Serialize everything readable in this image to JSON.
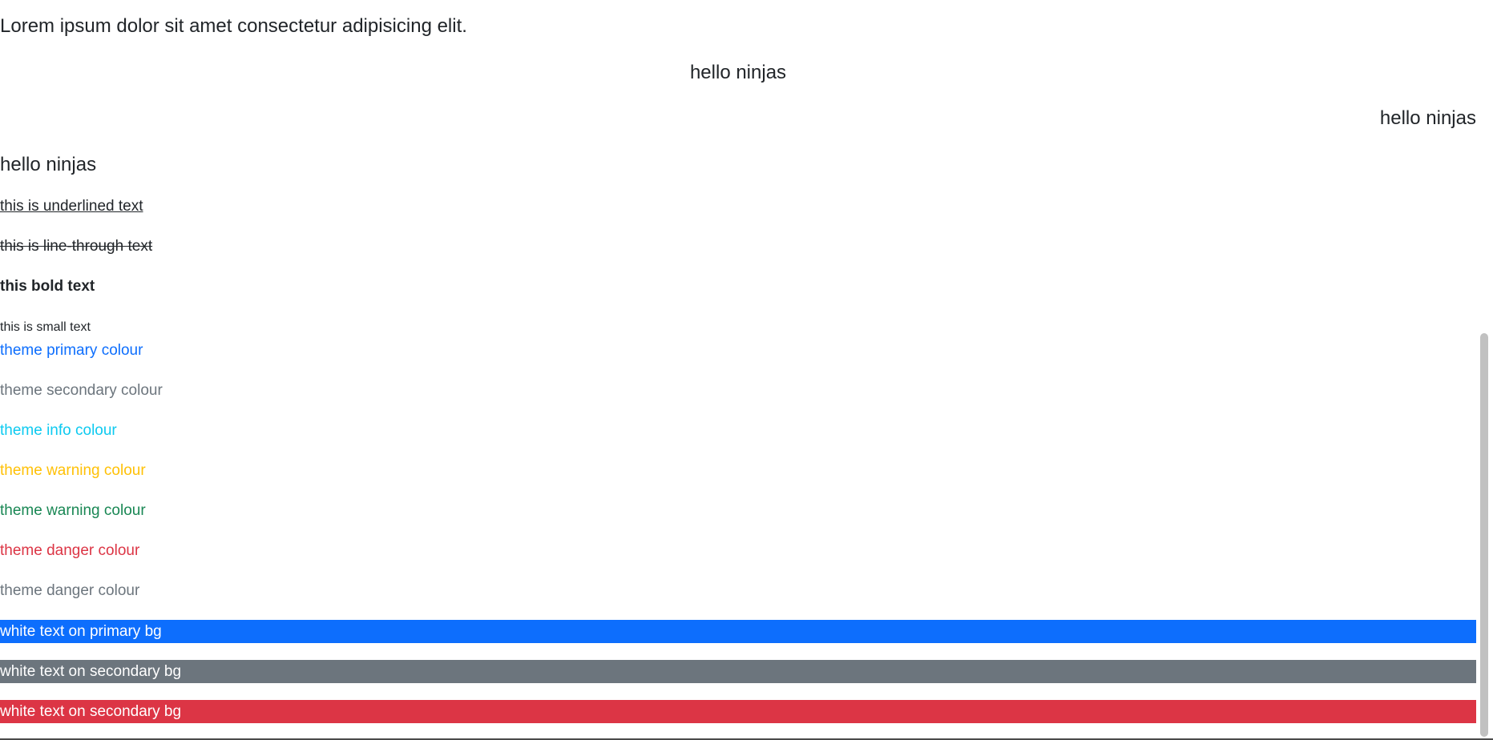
{
  "intro": "Lorem ipsum dolor sit amet consectetur adipisicing elit.",
  "headings": {
    "center": "hello ninjas",
    "right": "hello ninjas",
    "left": "hello ninjas"
  },
  "decorations": {
    "underline": "this is underlined text",
    "line_through": "this is line-through text",
    "bold": "this bold text",
    "small": "this is small text"
  },
  "text_colors": [
    {
      "label": "theme primary colour",
      "color": "#0d6efd"
    },
    {
      "label": "theme secondary colour",
      "color": "#6c757d"
    },
    {
      "label": "theme info colour",
      "color": "#0dcaf0"
    },
    {
      "label": "theme warning colour",
      "color": "#ffc107"
    },
    {
      "label": "theme warning colour",
      "color": "#198754"
    },
    {
      "label": "theme danger colour",
      "color": "#dc3545"
    },
    {
      "label": "theme danger colour",
      "color": "#6c757d"
    }
  ],
  "backgrounds": [
    {
      "label": "white text on primary bg",
      "color": "#0d6efd"
    },
    {
      "label": "white text on secondary bg",
      "color": "#6c757d"
    },
    {
      "label": "white text on secondary bg",
      "color": "#dc3545"
    }
  ]
}
